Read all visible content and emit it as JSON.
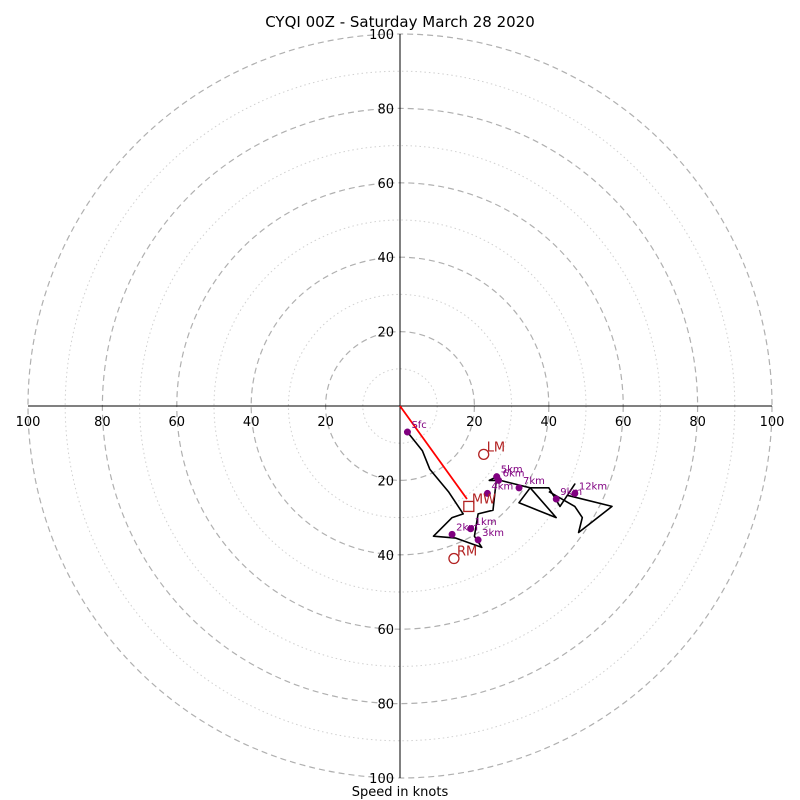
{
  "chart_data": {
    "type": "hodograph",
    "title": "CYQI 00Z - Saturday March 28 2020",
    "xlabel": "Speed in knots",
    "ring_labels": [
      "20",
      "40",
      "60",
      "80",
      "100"
    ],
    "xlim": [
      -100,
      100
    ],
    "ylim": [
      -100,
      100
    ],
    "ring_major_step": 20,
    "ring_minor_step": 10,
    "grid": true,
    "colors": {
      "hodograph_line": "#000000",
      "height_markers": "#800080",
      "storm_motion": "#b22222",
      "shear_vector": "#ff0000",
      "ring_major": "#b0b0b0",
      "ring_minor": "#d0d0d0"
    },
    "hodograph_trace": [
      [
        2,
        -7
      ],
      [
        6,
        -12
      ],
      [
        8,
        -17
      ],
      [
        13,
        -23
      ],
      [
        17,
        -29
      ],
      [
        14,
        -30
      ],
      [
        9,
        -35
      ],
      [
        15,
        -35.5
      ],
      [
        22,
        -38
      ],
      [
        20,
        -35
      ],
      [
        21,
        -29
      ],
      [
        25,
        -28
      ],
      [
        26,
        -19
      ],
      [
        24,
        -20
      ],
      [
        27,
        -20
      ],
      [
        31,
        -21
      ],
      [
        35,
        -22
      ],
      [
        32,
        -26
      ],
      [
        37,
        -28
      ],
      [
        42,
        -30
      ],
      [
        35,
        -22
      ],
      [
        40,
        -22
      ],
      [
        43,
        -27
      ],
      [
        47,
        -21
      ],
      [
        45,
        -24
      ],
      [
        57,
        -27
      ],
      [
        48,
        -34
      ],
      [
        49,
        -30
      ],
      [
        47,
        -27
      ],
      [
        40,
        -23
      ]
    ],
    "height_markers": [
      {
        "label": "Sfc",
        "u": 2,
        "v": -7
      },
      {
        "label": "1km",
        "u": 19,
        "v": -33
      },
      {
        "label": "2km",
        "u": 14,
        "v": -34.5
      },
      {
        "label": "3km",
        "u": 21,
        "v": -36
      },
      {
        "label": "4km",
        "u": 23.5,
        "v": -23.5
      },
      {
        "label": "5km",
        "u": 26,
        "v": -19
      },
      {
        "label": "6km",
        "u": 26.5,
        "v": -20
      },
      {
        "label": "7km",
        "u": 32,
        "v": -22
      },
      {
        "label": "9km",
        "u": 42,
        "v": -25
      },
      {
        "label": "12km",
        "u": 47,
        "v": -23.5
      }
    ],
    "storm_motions": [
      {
        "label": "LM",
        "u": 22.5,
        "v": -13,
        "marker": "circle"
      },
      {
        "label": "MW",
        "u": 18.5,
        "v": -27,
        "marker": "square"
      },
      {
        "label": "RM",
        "u": 14.5,
        "v": -41,
        "marker": "circle"
      }
    ],
    "shear_vector": {
      "u0": 0,
      "v0": 0,
      "u1": 18,
      "v1": -25
    }
  }
}
